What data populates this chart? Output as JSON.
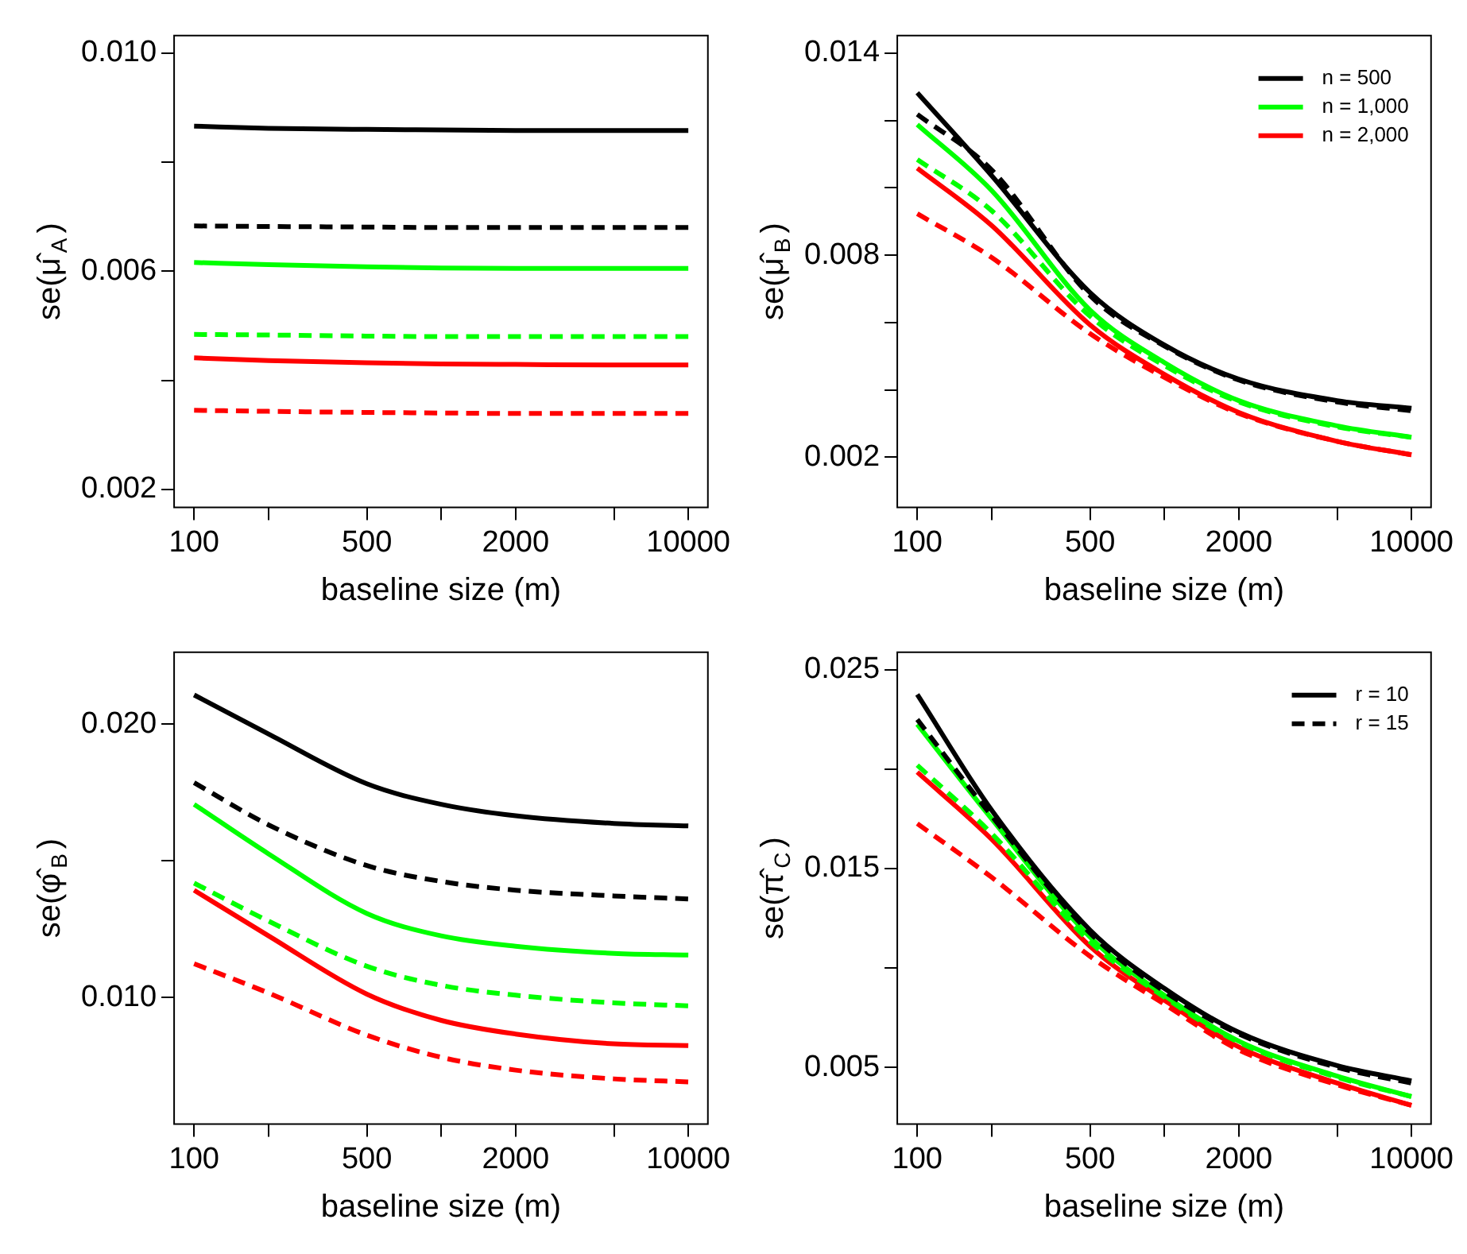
{
  "chart_data": [
    {
      "type": "line",
      "xlabel": "baseline size (m)",
      "ylabel": "se(μ̂$_{A}$)",
      "log": "x",
      "x": [
        100,
        200,
        500,
        1000,
        2000,
        5000,
        10000
      ],
      "xlim": [
        83,
        12000
      ],
      "xticks": [
        100,
        {
          "value": 200,
          "label": null
        },
        500,
        {
          "value": 1000,
          "label": null
        },
        2000,
        {
          "value": 5000,
          "label": null
        },
        10000
      ],
      "ylim": [
        0.00167,
        0.01032
      ],
      "yticks": [
        0.002,
        {
          "value": 0.004,
          "label": null
        },
        0.006,
        {
          "value": 0.008,
          "label": null
        },
        {
          "value": 0.01,
          "label": "0.010"
        }
      ],
      "series": [
        {
          "color": "#000000",
          "line_style": "solid",
          "values": [
            0.00866,
            0.00862,
            0.0086,
            0.00859,
            0.00858,
            0.00858,
            0.00858
          ]
        },
        {
          "color": "#000000",
          "line_style": "dashed",
          "values": [
            0.00683,
            0.00682,
            0.00681,
            0.0068,
            0.0068,
            0.0068,
            0.0068
          ]
        },
        {
          "color": "#00ff00",
          "line_style": "solid",
          "values": [
            0.00616,
            0.00612,
            0.00608,
            0.00606,
            0.00605,
            0.00605,
            0.00605
          ]
        },
        {
          "color": "#00ff00",
          "line_style": "dashed",
          "values": [
            0.00484,
            0.00483,
            0.00481,
            0.0048,
            0.0048,
            0.0048,
            0.0048
          ]
        },
        {
          "color": "#ff0000",
          "line_style": "solid",
          "values": [
            0.00441,
            0.00436,
            0.00432,
            0.0043,
            0.00429,
            0.00428,
            0.00428
          ]
        },
        {
          "color": "#ff0000",
          "line_style": "dashed",
          "values": [
            0.00345,
            0.00343,
            0.00341,
            0.0034,
            0.00339,
            0.00339,
            0.00339
          ]
        }
      ]
    },
    {
      "type": "line",
      "xlabel": "baseline size (m)",
      "ylabel": "se(μ̂$_{B}$)",
      "log": "x",
      "legend": "top right",
      "x": [
        100,
        200,
        500,
        1000,
        2000,
        5000,
        10000
      ],
      "xlim": [
        83,
        12000
      ],
      "xticks": [
        100,
        {
          "value": 200,
          "label": null
        },
        500,
        {
          "value": 1000,
          "label": null
        },
        2000,
        {
          "value": 5000,
          "label": null
        },
        10000
      ],
      "ylim": [
        0.00051,
        0.01452
      ],
      "yticks": [
        0.002,
        {
          "value": 0.004,
          "label": null
        },
        {
          "value": 0.006,
          "label": null
        },
        0.008,
        {
          "value": 0.01,
          "label": null
        },
        {
          "value": 0.012,
          "label": null
        },
        0.014
      ],
      "series": [
        {
          "name": "n = 500",
          "color": "#000000",
          "line_style": "solid",
          "values": [
            0.01282,
            0.01036,
            0.00689,
            0.00533,
            0.00432,
            0.00368,
            0.00345
          ]
        },
        {
          "color": "#000000",
          "line_style": "dashed",
          "values": [
            0.01218,
            0.01053,
            0.0068,
            0.0053,
            0.00429,
            0.00364,
            0.00338
          ]
        },
        {
          "name": "n = 1,000",
          "color": "#00ff00",
          "line_style": "solid",
          "values": [
            0.01188,
            0.00992,
            0.00637,
            0.00481,
            0.00368,
            0.00293,
            0.00259
          ]
        },
        {
          "color": "#00ff00",
          "line_style": "dashed",
          "values": [
            0.01084,
            0.00932,
            0.00619,
            0.00472,
            0.00364,
            0.0029,
            0.00259
          ]
        },
        {
          "name": "n = 2,000",
          "color": "#ff0000",
          "line_style": "solid",
          "values": [
            0.01058,
            0.00888,
            0.00593,
            0.00446,
            0.00333,
            0.00247,
            0.00207
          ]
        },
        {
          "color": "#ff0000",
          "line_style": "dashed",
          "values": [
            0.00923,
            0.00793,
            0.00567,
            0.00437,
            0.0033,
            0.00247,
            0.00207
          ]
        }
      ]
    },
    {
      "type": "line",
      "xlabel": "baseline size (m)",
      "ylabel": "se(φ̂$_{B}$)",
      "log": "x",
      "x": [
        100,
        200,
        500,
        1000,
        2000,
        5000,
        10000
      ],
      "xlim": [
        83,
        12000
      ],
      "xticks": [
        100,
        {
          "value": 200,
          "label": null
        },
        500,
        {
          "value": 1000,
          "label": null
        },
        2000,
        {
          "value": 5000,
          "label": null
        },
        10000
      ],
      "ylim": [
        0.00538,
        0.02263
      ],
      "yticks": [
        {
          "value": 0.01,
          "label": "0.010"
        },
        {
          "value": 0.015,
          "label": null
        },
        {
          "value": 0.02,
          "label": "0.020"
        }
      ],
      "series": [
        {
          "color": "#000000",
          "line_style": "solid",
          "values": [
            0.02107,
            0.01964,
            0.01782,
            0.01707,
            0.01665,
            0.01637,
            0.01628
          ]
        },
        {
          "color": "#000000",
          "line_style": "dashed",
          "values": [
            0.01786,
            0.01632,
            0.01483,
            0.01425,
            0.01393,
            0.01372,
            0.01361
          ]
        },
        {
          "color": "#00ff00",
          "line_style": "solid",
          "values": [
            0.01707,
            0.01526,
            0.01308,
            0.01226,
            0.01188,
            0.01162,
            0.01156
          ]
        },
        {
          "color": "#00ff00",
          "line_style": "dashed",
          "values": [
            0.01419,
            0.0128,
            0.01115,
            0.01045,
            0.01009,
            0.00981,
            0.0097
          ]
        },
        {
          "color": "#ff0000",
          "line_style": "solid",
          "values": [
            0.01393,
            0.01226,
            0.01013,
            0.00917,
            0.00867,
            0.00831,
            0.00825
          ]
        },
        {
          "color": "#ff0000",
          "line_style": "dashed",
          "values": [
            0.01124,
            0.01017,
            0.00863,
            0.00782,
            0.00735,
            0.00703,
            0.00692
          ]
        }
      ]
    },
    {
      "type": "line",
      "xlabel": "baseline size (m)",
      "ylabel": "se(π̂$_{C}$)",
      "log": "x",
      "legend": "top right",
      "x": [
        100,
        200,
        500,
        1000,
        2000,
        5000,
        10000
      ],
      "xlim": [
        83,
        12000
      ],
      "xticks": [
        100,
        {
          "value": 200,
          "label": null
        },
        500,
        {
          "value": 1000,
          "label": null
        },
        2000,
        {
          "value": 5000,
          "label": null
        },
        10000
      ],
      "ylim": [
        0.00215,
        0.02588
      ],
      "yticks": [
        0.005,
        {
          "value": 0.01,
          "label": null
        },
        0.015,
        {
          "value": 0.02,
          "label": null
        },
        0.025
      ],
      "series": [
        {
          "name": "r = 10",
          "color": "#000000",
          "line_style": "solid",
          "values": [
            0.02376,
            0.01794,
            0.01191,
            0.00897,
            0.00676,
            0.00509,
            0.00432
          ]
        },
        {
          "name": "r = 15",
          "color": "#000000",
          "line_style": "dashed",
          "values": [
            0.0225,
            0.01765,
            0.01176,
            0.00882,
            0.00668,
            0.005,
            0.00421
          ]
        },
        {
          "color": "#00ff00",
          "line_style": "solid",
          "values": [
            0.02226,
            0.0175,
            0.01156,
            0.00862,
            0.00632,
            0.00456,
            0.00353
          ]
        },
        {
          "color": "#00ff00",
          "line_style": "dashed",
          "values": [
            0.0202,
            0.01676,
            0.01132,
            0.00853,
            0.00626,
            0.0045,
            0.00353
          ]
        },
        {
          "color": "#ff0000",
          "line_style": "solid",
          "values": [
            0.01985,
            0.01647,
            0.01109,
            0.00838,
            0.00603,
            0.00421,
            0.00309
          ]
        },
        {
          "color": "#ff0000",
          "line_style": "dashed",
          "values": [
            0.01726,
            0.01456,
            0.01059,
            0.00818,
            0.00588,
            0.00412,
            0.00309
          ]
        }
      ]
    }
  ]
}
